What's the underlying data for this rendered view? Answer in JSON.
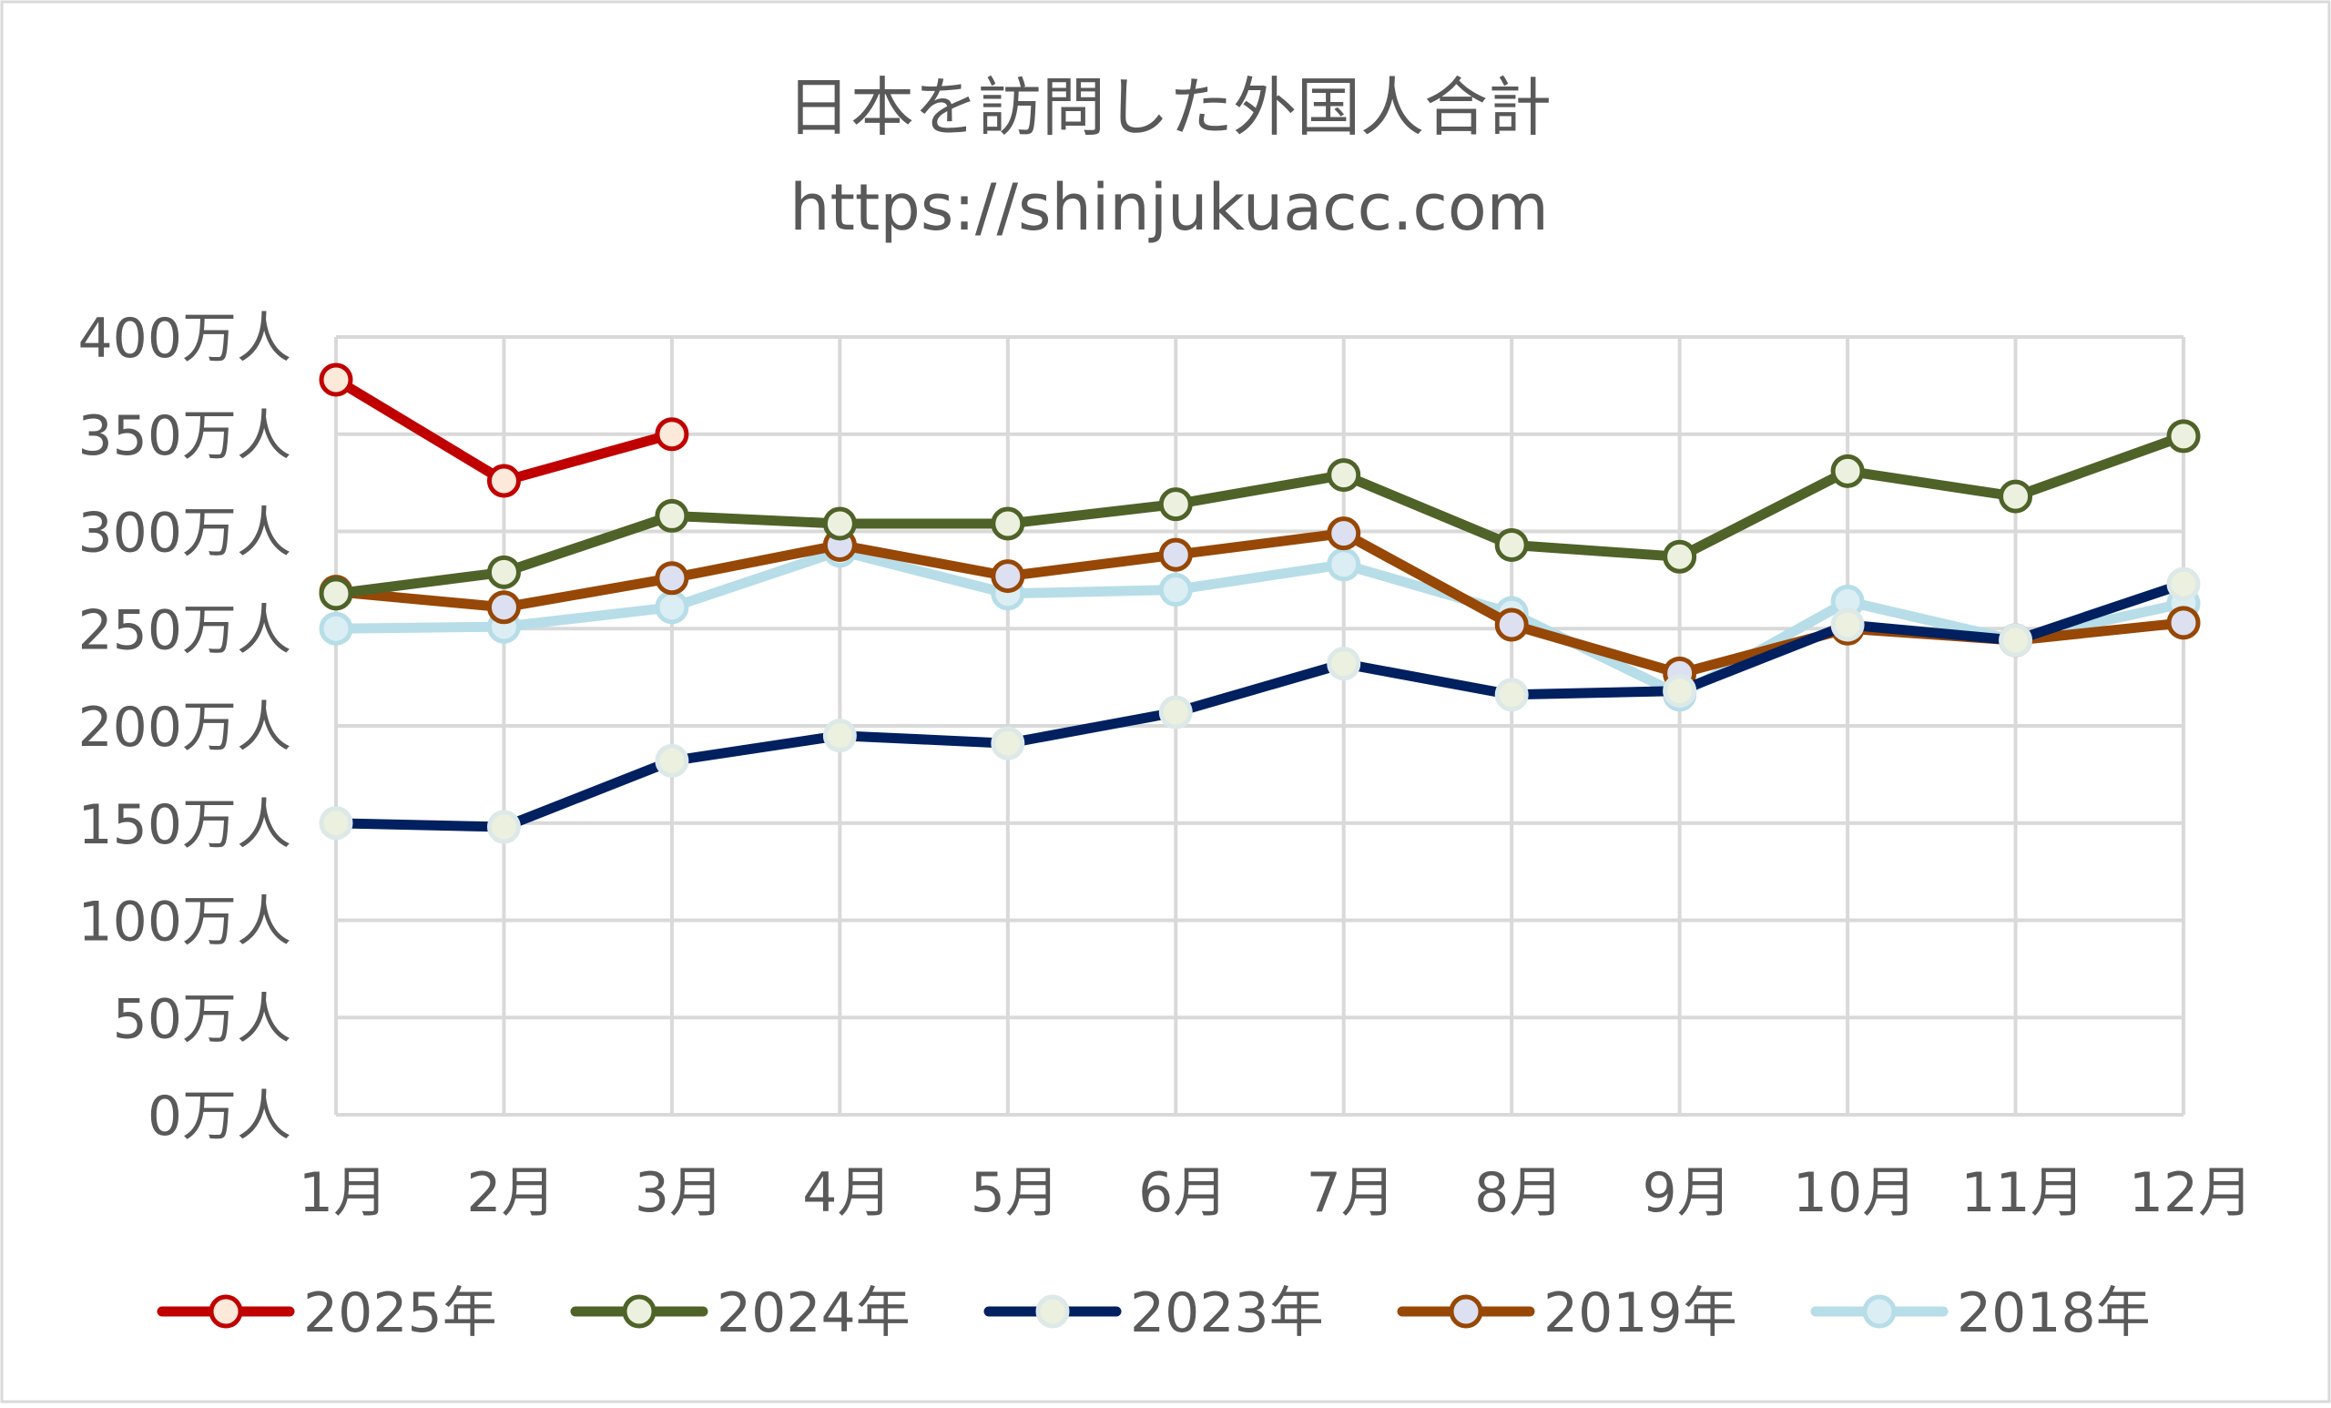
{
  "chart_data": {
    "type": "line",
    "title": "日本を訪問した外国人合計",
    "subtitle": "https://shinjukuacc.com",
    "xlabel": "",
    "ylabel": "",
    "ylim": [
      0,
      400
    ],
    "y_ticks": [
      {
        "value": 0,
        "label": "0万人"
      },
      {
        "value": 50,
        "label": "50万人"
      },
      {
        "value": 100,
        "label": "100万人"
      },
      {
        "value": 150,
        "label": "150万人"
      },
      {
        "value": 200,
        "label": "200万人"
      },
      {
        "value": 250,
        "label": "250万人"
      },
      {
        "value": 300,
        "label": "300万人"
      },
      {
        "value": 350,
        "label": "350万人"
      },
      {
        "value": 400,
        "label": "400万人"
      }
    ],
    "categories": [
      "1月",
      "2月",
      "3月",
      "4月",
      "5月",
      "6月",
      "7月",
      "8月",
      "9月",
      "10月",
      "11月",
      "12月"
    ],
    "grid": true,
    "legend_position": "bottom",
    "series": [
      {
        "name": "2018年",
        "color": "#b7dde8",
        "marker_fill": "#daeef3",
        "marker_stroke": "#b7dde8",
        "values": [
          250,
          251,
          261,
          290,
          268,
          270,
          283,
          258,
          216,
          264,
          244,
          263
        ]
      },
      {
        "name": "2019年",
        "color": "#974706",
        "marker_fill": "#dce0f0",
        "marker_stroke": "#974706",
        "values": [
          269,
          261,
          276,
          293,
          277,
          288,
          299,
          252,
          227,
          250,
          244,
          253
        ]
      },
      {
        "name": "2023年",
        "color": "#002060",
        "marker_fill": "#ebf1de",
        "marker_stroke": "#dde8e8",
        "values": [
          150,
          148,
          182,
          195,
          191,
          207,
          232,
          216,
          218,
          252,
          244,
          273
        ]
      },
      {
        "name": "2024年",
        "color": "#4f6228",
        "marker_fill": "#ebf1de",
        "marker_stroke": "#4f6228",
        "values": [
          268,
          279,
          308,
          304,
          304,
          314,
          329,
          293,
          287,
          331,
          318,
          349
        ]
      },
      {
        "name": "2025年",
        "color": "#c00000",
        "marker_fill": "#fde9d9",
        "marker_stroke": "#c00000",
        "values": [
          378,
          326,
          350,
          null,
          null,
          null,
          null,
          null,
          null,
          null,
          null,
          null
        ]
      }
    ],
    "legend_order": [
      "2025年",
      "2024年",
      "2023年",
      "2019年",
      "2018年"
    ]
  }
}
